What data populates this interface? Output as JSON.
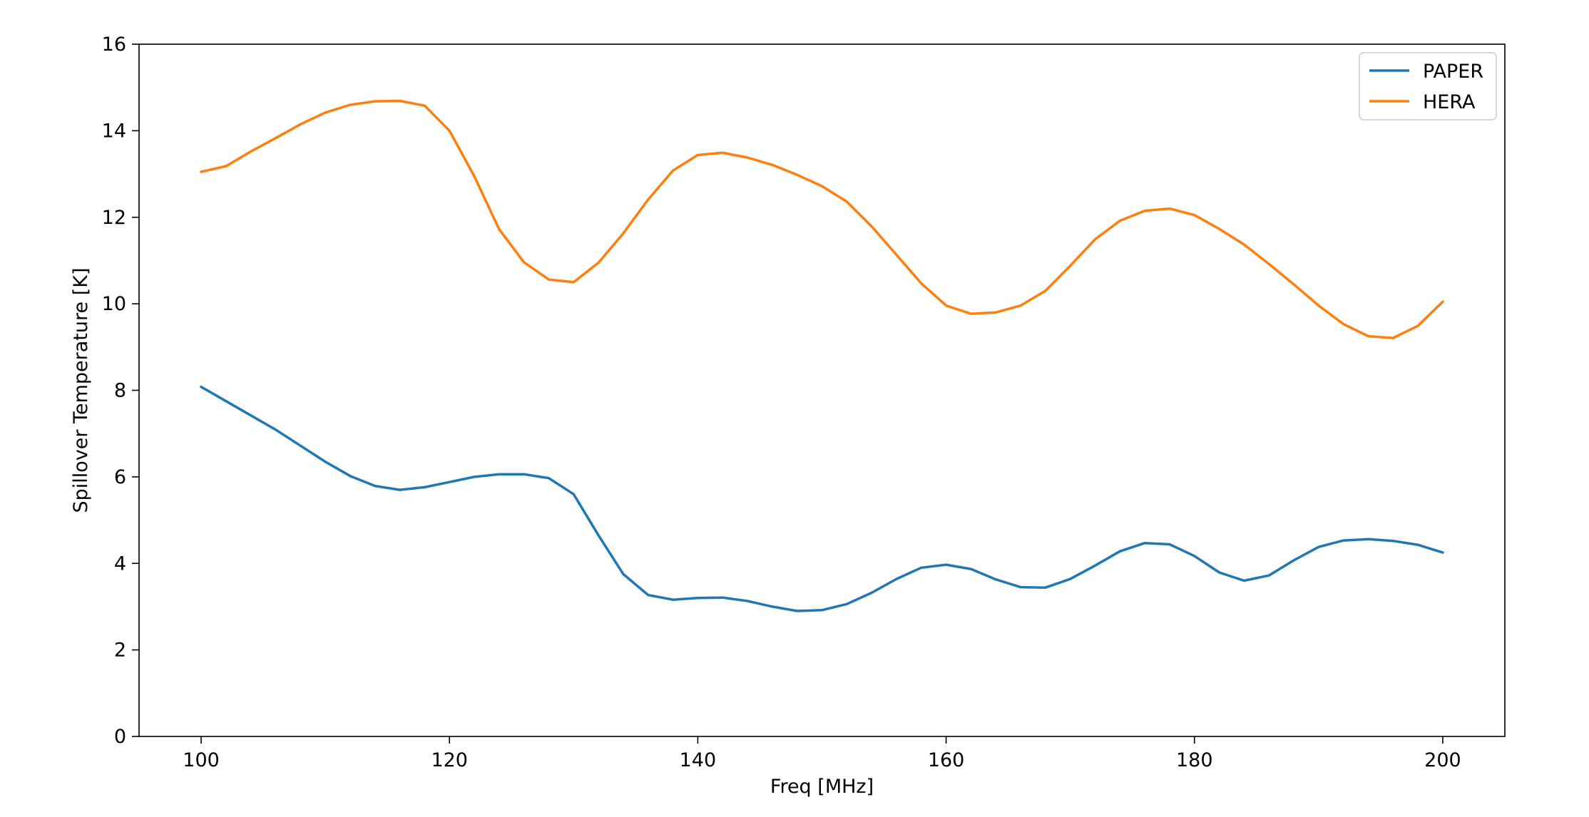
{
  "chart_data": {
    "type": "line",
    "title": "",
    "xlabel": "Freq [MHz]",
    "ylabel": "Spillover Temperature [K]",
    "xlim": [
      95,
      205
    ],
    "ylim": [
      0,
      16
    ],
    "xticks": [
      100,
      120,
      140,
      160,
      180,
      200
    ],
    "yticks": [
      0,
      2,
      4,
      6,
      8,
      10,
      12,
      14,
      16
    ],
    "grid": false,
    "legend_position": "top-right",
    "x": [
      100,
      102,
      104,
      106,
      108,
      110,
      112,
      114,
      116,
      118,
      120,
      122,
      124,
      126,
      128,
      130,
      132,
      134,
      136,
      138,
      140,
      142,
      144,
      146,
      148,
      150,
      152,
      154,
      156,
      158,
      160,
      162,
      164,
      166,
      168,
      170,
      172,
      174,
      176,
      178,
      180,
      182,
      184,
      186,
      188,
      190,
      192,
      194,
      196,
      198,
      200
    ],
    "series": [
      {
        "name": "PAPER",
        "color": "#1f77b4",
        "values": [
          8.08,
          7.75,
          7.42,
          7.09,
          6.72,
          6.35,
          6.02,
          5.79,
          5.7,
          5.76,
          5.88,
          6.0,
          6.06,
          6.06,
          5.97,
          5.6,
          4.65,
          3.75,
          3.27,
          3.16,
          3.2,
          3.21,
          3.13,
          3.0,
          2.9,
          2.92,
          3.06,
          3.32,
          3.64,
          3.9,
          3.97,
          3.87,
          3.63,
          3.45,
          3.44,
          3.64,
          3.95,
          4.28,
          4.47,
          4.44,
          4.17,
          3.79,
          3.6,
          3.72,
          4.07,
          4.38,
          4.53,
          4.56,
          4.52,
          4.43,
          4.25
        ]
      },
      {
        "name": "HERA",
        "color": "#ff7f0e",
        "values": [
          13.05,
          13.18,
          13.52,
          13.83,
          14.15,
          14.42,
          14.6,
          14.68,
          14.69,
          14.58,
          14.0,
          12.95,
          11.72,
          10.96,
          10.56,
          10.5,
          10.95,
          11.63,
          12.41,
          13.08,
          13.44,
          13.49,
          13.38,
          13.21,
          12.98,
          12.72,
          12.36,
          11.79,
          11.13,
          10.47,
          9.96,
          9.77,
          9.8,
          9.96,
          10.3,
          10.88,
          11.49,
          11.92,
          12.15,
          12.2,
          12.05,
          11.73,
          11.37,
          10.92,
          10.45,
          9.96,
          9.53,
          9.25,
          9.21,
          9.49,
          10.05
        ]
      }
    ]
  }
}
